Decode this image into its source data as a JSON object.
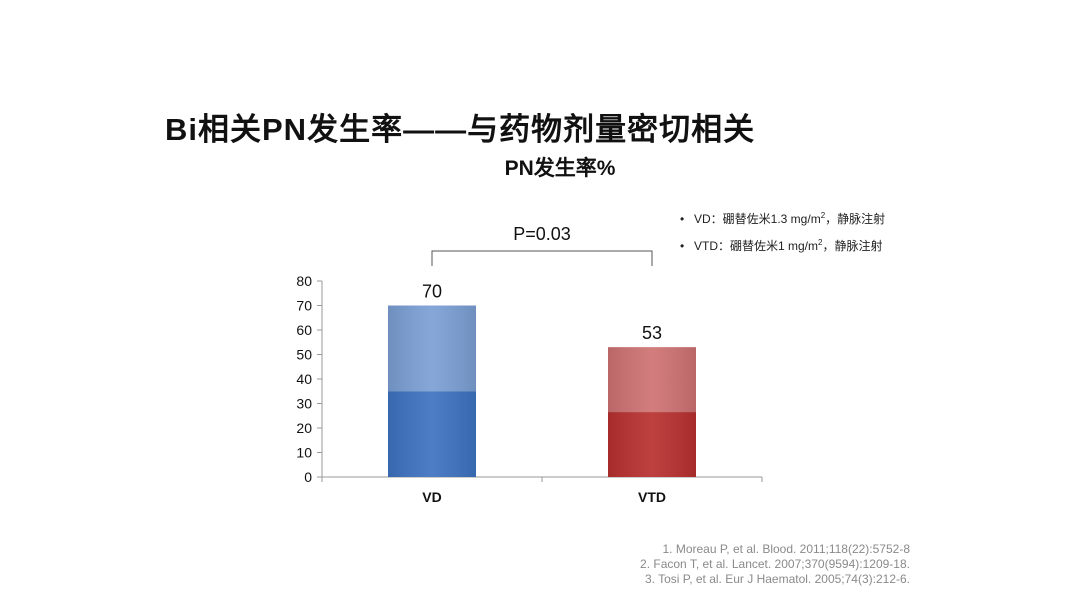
{
  "slide": {
    "title": "Bi相关PN发生率——与药物剂量密切相关"
  },
  "legend_notes": [
    {
      "bullet": "•",
      "text": "VD：硼替佐米1.3 mg/m",
      "sup": "2",
      "suffix": "，静脉注射"
    },
    {
      "bullet": "•",
      "text": "VTD：硼替佐米1 mg/m",
      "sup": "2",
      "suffix": "，静脉注射"
    }
  ],
  "references": [
    "1. Moreau P, et al. Blood. 2011;118(22):5752-8",
    "2. Facon T, et al. Lancet. 2007;370(9594):1209-18.",
    "3. Tosi P, et al. Eur J Haematol. 2005;74(3):212-6."
  ],
  "chart_data": {
    "type": "bar",
    "title": "PN发生率%",
    "categories": [
      "VD",
      "VTD"
    ],
    "values": [
      70,
      53
    ],
    "data_labels": [
      "70",
      "53"
    ],
    "colors": [
      "#3d72c0",
      "#b8302f"
    ],
    "ylim": [
      0,
      80
    ],
    "yticks": [
      "0",
      "10",
      "20",
      "30",
      "40",
      "50",
      "60",
      "70",
      "80"
    ],
    "grid": false,
    "annotation": "P=0.03"
  }
}
